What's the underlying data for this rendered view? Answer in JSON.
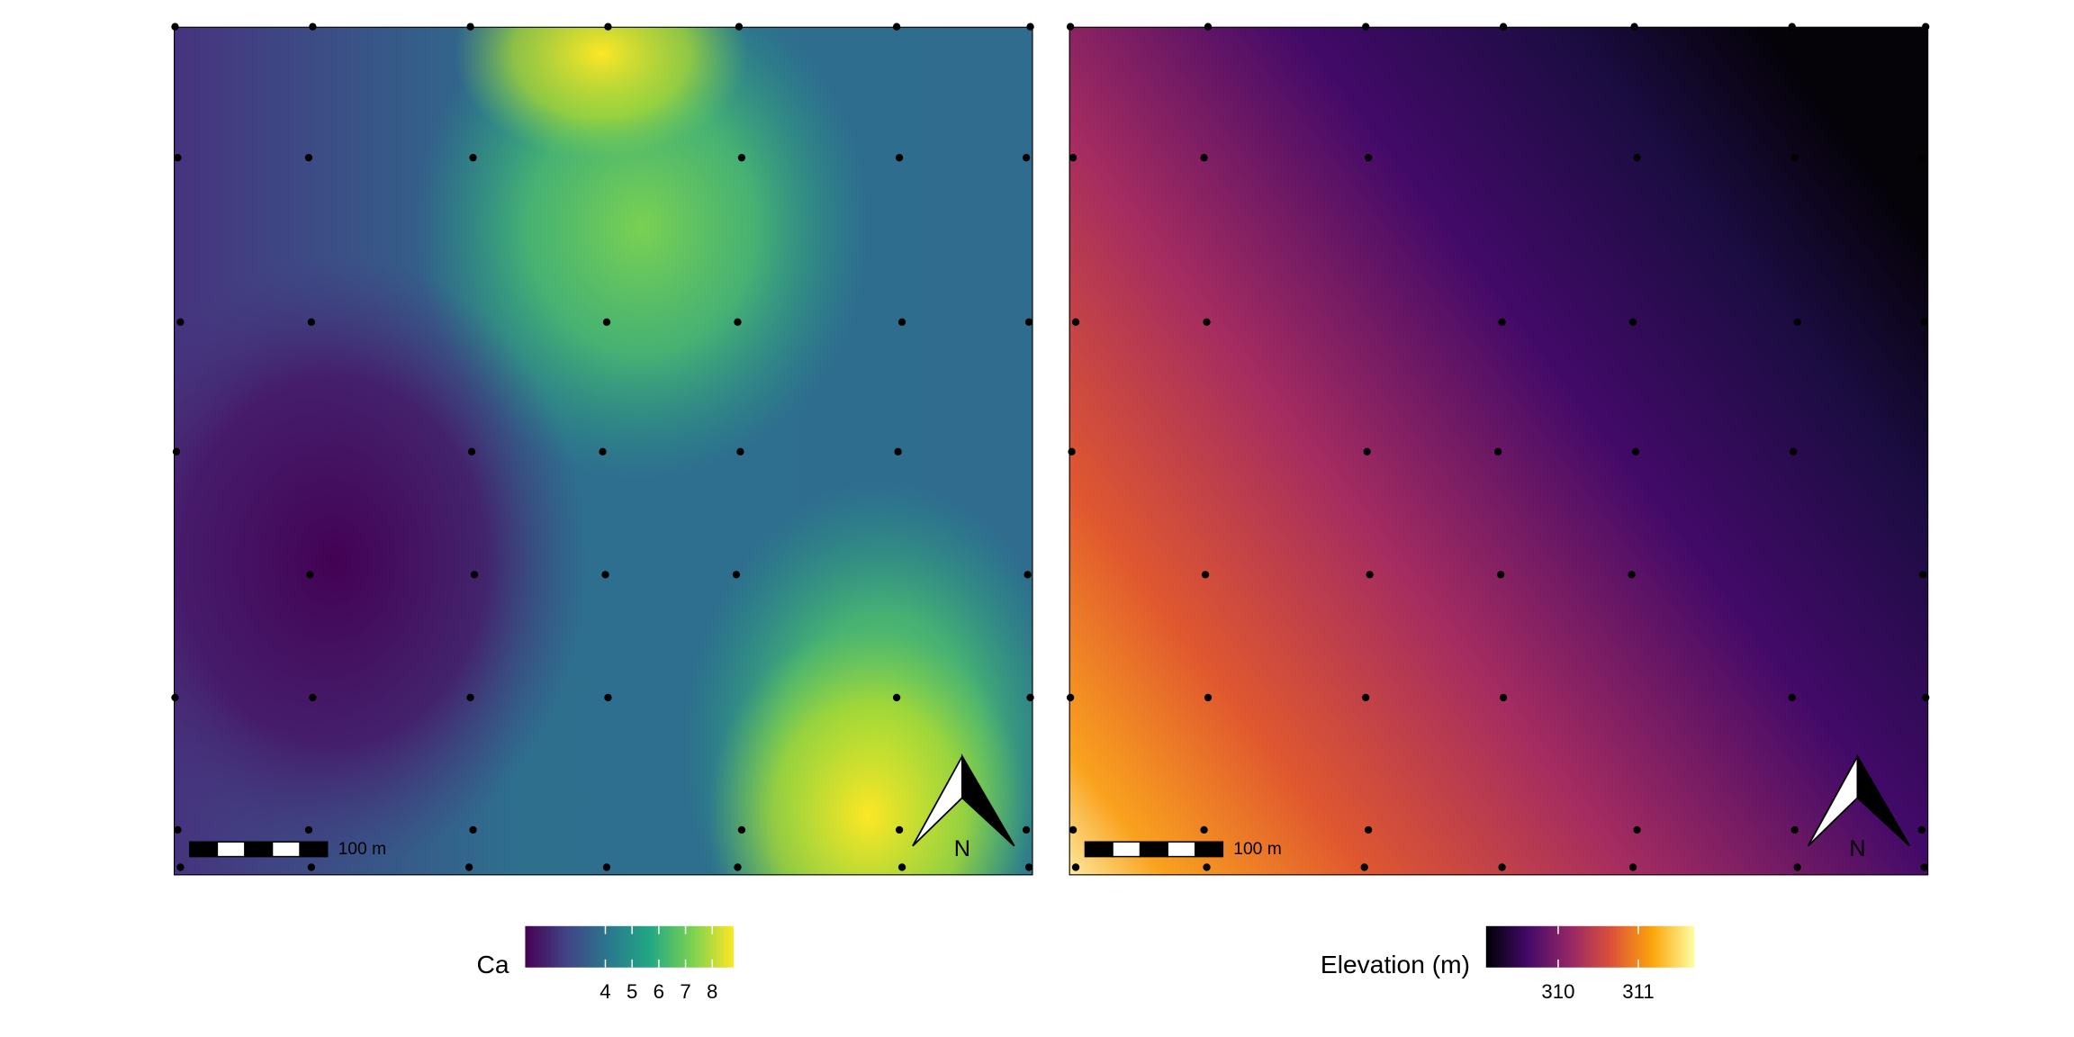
{
  "panels": [
    {
      "legend": {
        "title": "Ca",
        "lim": [
          1,
          8.8
        ],
        "ticks": [
          4,
          5,
          6,
          7,
          8
        ]
      },
      "scale_bar": "100 m",
      "north": "N"
    },
    {
      "legend": {
        "title": "Elevation (m)",
        "lim": [
          309.1,
          311.7
        ],
        "ticks": [
          310,
          311
        ]
      },
      "scale_bar": "100 m",
      "north": "N"
    }
  ]
}
